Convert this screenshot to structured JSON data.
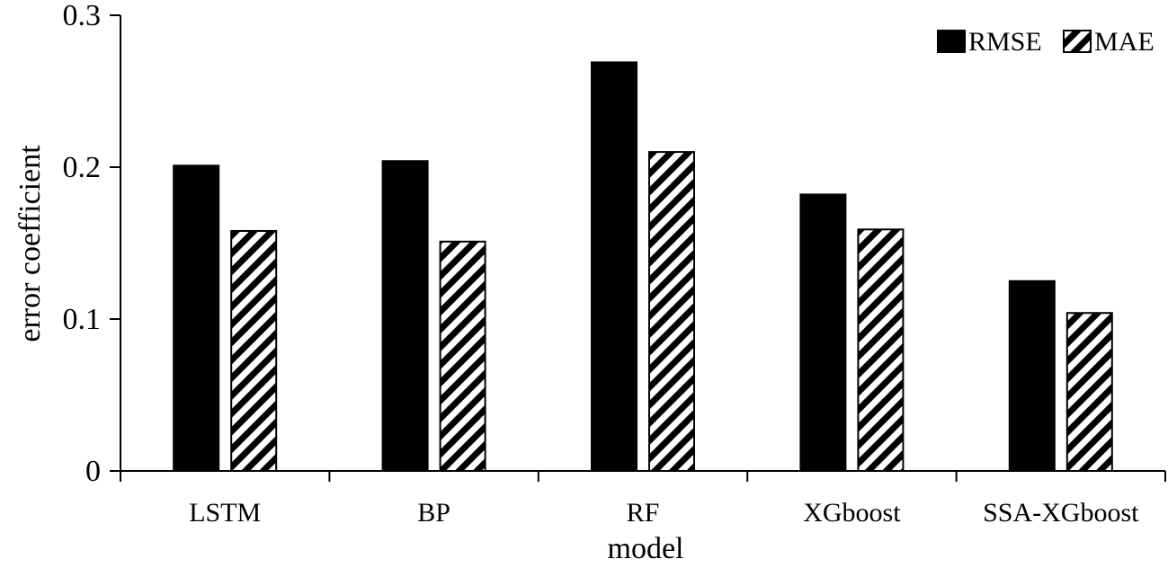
{
  "chart_data": {
    "type": "bar",
    "title": "",
    "xlabel": "model",
    "ylabel": "error coefficient",
    "categories": [
      "LSTM",
      "BP",
      "RF",
      "XGboost",
      "SSA-XGboost"
    ],
    "series": [
      {
        "name": "RMSE",
        "values": [
          0.201,
          0.204,
          0.269,
          0.182,
          0.125
        ],
        "fill": "solid",
        "color": "#000000"
      },
      {
        "name": "MAE",
        "values": [
          0.158,
          0.151,
          0.21,
          0.159,
          0.104
        ],
        "fill": "diagonal-hatch",
        "color": "#000000"
      }
    ],
    "ylim": [
      0,
      0.3
    ],
    "yticks": [
      "0",
      "0.1",
      "0.2",
      "0.3"
    ],
    "ytick_values": [
      0,
      0.1,
      0.2,
      0.3
    ],
    "grid": false,
    "legend_position": "top-right"
  }
}
